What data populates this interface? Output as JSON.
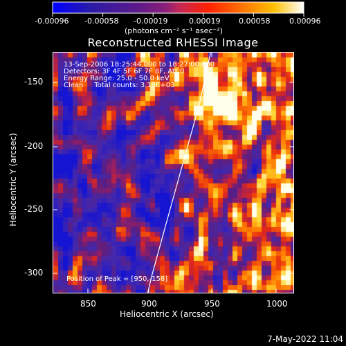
{
  "colorbar": {
    "ticks": [
      "-0.00096",
      "-0.00058",
      "-0.00019",
      "0.00019",
      "0.00058",
      "0.00096"
    ],
    "unit_label": "(photons cm⁻² s⁻¹ asec⁻²)",
    "range": [
      -0.00096,
      0.00096
    ]
  },
  "title": "Reconstructed RHESSI Image",
  "info": {
    "time_range": "13-Sep-2006 18:25:44.000 to 18:27:00.000",
    "detectors": "Detectors: 3F 4F 5F 6F 7F 8F, Att 0",
    "energy_range": "Energy Range: 25.0 - 50.0 keV",
    "clean": "Clean     Total counts: 3.18E+03",
    "peak": "Position of Peak = [950,-158]"
  },
  "axes": {
    "xlabel": "Heliocentric X (arcsec)",
    "ylabel": "Heliocentric Y (arcsec)",
    "xticks": [
      "850",
      "900",
      "950",
      "1000"
    ],
    "yticks": [
      "-150",
      "-200",
      "-250",
      "-300"
    ],
    "xlim": [
      820,
      1015
    ],
    "ylim": [
      -318,
      -130
    ]
  },
  "limb": {
    "points": [
      [
        947,
        -130
      ],
      [
        938,
        -170
      ],
      [
        925,
        -215
      ],
      [
        912,
        -260
      ],
      [
        900,
        -302
      ],
      [
        896,
        -318
      ]
    ]
  },
  "timestamp": "7-May-2022 11:04"
}
